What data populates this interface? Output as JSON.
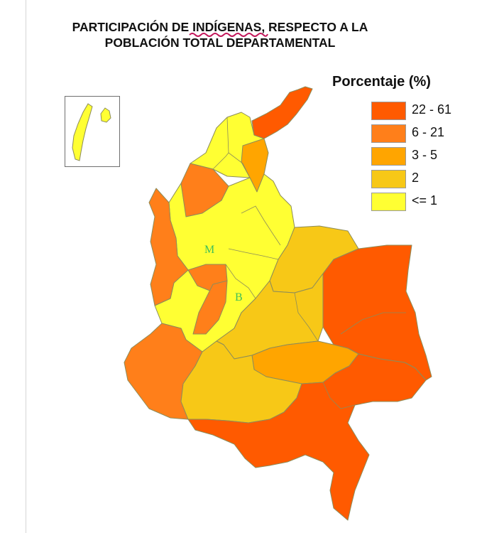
{
  "title": {
    "line1": "PARTICIPACIÓN DE INDÍGENAS, RESPECTO A LA",
    "line2": "POBLACIÓN TOTAL DEPARTAMENTAL"
  },
  "legend": {
    "title": "Porcentaje (%)",
    "items": [
      {
        "label": "22 - 61",
        "color": "#ff5a00"
      },
      {
        "label": "6 - 21",
        "color": "#ff7f1a"
      },
      {
        "label": "3 - 5",
        "color": "#ffa500"
      },
      {
        "label": "2",
        "color": "#f7c817"
      },
      {
        "label": "<= 1",
        "color": "#ffff33"
      }
    ]
  },
  "map_labels": {
    "m": "M",
    "b": "B"
  },
  "colors": {
    "border": "#8c8c5a",
    "squiggle": "#c2185b"
  }
}
